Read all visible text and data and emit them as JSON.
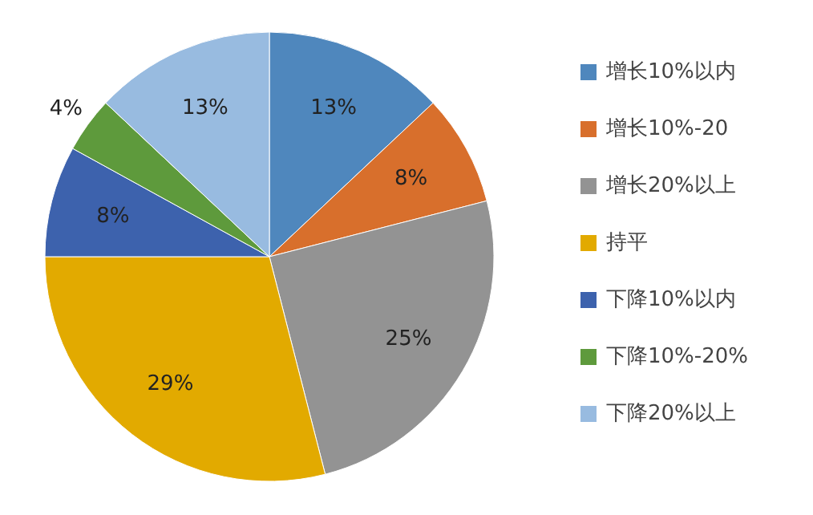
{
  "chart_data": {
    "type": "pie",
    "categories": [
      "增长10%以内",
      "增长10%-20",
      "增长20%以上",
      "持平",
      "下降10%以内",
      "下降10%-20%",
      "下降20%以上"
    ],
    "values": [
      13,
      8,
      25,
      29,
      8,
      4,
      13
    ],
    "value_labels": [
      "13%",
      "8%",
      "25%",
      "29%",
      "8%",
      "4%",
      "13%"
    ],
    "colors": [
      "#4f87bd",
      "#d86f2c",
      "#939393",
      "#e2aa00",
      "#3d62ad",
      "#5e9a3c",
      "#98bbe0"
    ],
    "legend": "right"
  }
}
